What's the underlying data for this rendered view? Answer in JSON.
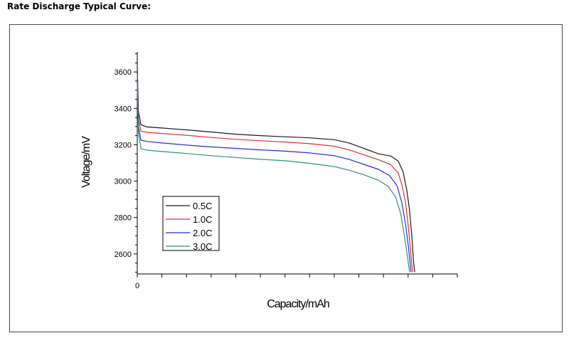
{
  "heading": "Rate Discharge Typical Curve:",
  "chart_data": {
    "type": "line",
    "title": "",
    "xlabel": "Capacity/mAh",
    "ylabel": "Voltage/mV",
    "xlim": [
      0,
      1300
    ],
    "ylim": [
      2490,
      3710
    ],
    "yticks": [
      2600,
      2800,
      3000,
      3200,
      3400,
      3600
    ],
    "x_tick_labels": [
      "0"
    ],
    "x_minor_ticks": [
      100,
      200,
      300,
      400,
      500,
      600,
      700,
      800,
      900,
      1000,
      1100,
      1200,
      1300
    ],
    "grid": false,
    "legend_position": "bottom-left",
    "series": [
      {
        "name": "0.5C",
        "color": "#1a1a1a",
        "points": [
          [
            0,
            3630
          ],
          [
            5,
            3380
          ],
          [
            15,
            3310
          ],
          [
            40,
            3298
          ],
          [
            100,
            3292
          ],
          [
            200,
            3282
          ],
          [
            300,
            3270
          ],
          [
            400,
            3258
          ],
          [
            500,
            3250
          ],
          [
            600,
            3244
          ],
          [
            700,
            3238
          ],
          [
            800,
            3228
          ],
          [
            860,
            3210
          ],
          [
            920,
            3180
          ],
          [
            980,
            3150
          ],
          [
            1030,
            3138
          ],
          [
            1060,
            3110
          ],
          [
            1080,
            3050
          ],
          [
            1095,
            2950
          ],
          [
            1105,
            2850
          ],
          [
            1115,
            2700
          ],
          [
            1122,
            2560
          ],
          [
            1127,
            2500
          ]
        ]
      },
      {
        "name": "1.0C",
        "color": "#e03030",
        "points": [
          [
            0,
            3590
          ],
          [
            5,
            3340
          ],
          [
            15,
            3275
          ],
          [
            40,
            3268
          ],
          [
            100,
            3262
          ],
          [
            200,
            3252
          ],
          [
            300,
            3240
          ],
          [
            400,
            3230
          ],
          [
            500,
            3222
          ],
          [
            600,
            3215
          ],
          [
            700,
            3206
          ],
          [
            800,
            3192
          ],
          [
            860,
            3172
          ],
          [
            920,
            3145
          ],
          [
            980,
            3118
          ],
          [
            1030,
            3090
          ],
          [
            1060,
            3045
          ],
          [
            1075,
            2980
          ],
          [
            1090,
            2880
          ],
          [
            1100,
            2760
          ],
          [
            1110,
            2620
          ],
          [
            1118,
            2500
          ]
        ]
      },
      {
        "name": "2.0C",
        "color": "#2a2ae0",
        "points": [
          [
            0,
            3560
          ],
          [
            5,
            3300
          ],
          [
            15,
            3225
          ],
          [
            40,
            3218
          ],
          [
            100,
            3210
          ],
          [
            200,
            3198
          ],
          [
            300,
            3188
          ],
          [
            400,
            3180
          ],
          [
            500,
            3172
          ],
          [
            600,
            3165
          ],
          [
            700,
            3155
          ],
          [
            800,
            3140
          ],
          [
            860,
            3120
          ],
          [
            920,
            3092
          ],
          [
            980,
            3065
          ],
          [
            1025,
            3030
          ],
          [
            1055,
            2975
          ],
          [
            1075,
            2880
          ],
          [
            1090,
            2760
          ],
          [
            1102,
            2630
          ],
          [
            1112,
            2500
          ]
        ]
      },
      {
        "name": "3.0C",
        "color": "#2f8f80",
        "points": [
          [
            0,
            3540
          ],
          [
            5,
            3260
          ],
          [
            15,
            3178
          ],
          [
            40,
            3170
          ],
          [
            100,
            3163
          ],
          [
            200,
            3152
          ],
          [
            300,
            3140
          ],
          [
            400,
            3130
          ],
          [
            500,
            3120
          ],
          [
            600,
            3112
          ],
          [
            700,
            3098
          ],
          [
            800,
            3080
          ],
          [
            860,
            3060
          ],
          [
            920,
            3035
          ],
          [
            980,
            3005
          ],
          [
            1020,
            2970
          ],
          [
            1050,
            2910
          ],
          [
            1070,
            2820
          ],
          [
            1085,
            2700
          ],
          [
            1097,
            2590
          ],
          [
            1106,
            2500
          ]
        ]
      }
    ]
  }
}
